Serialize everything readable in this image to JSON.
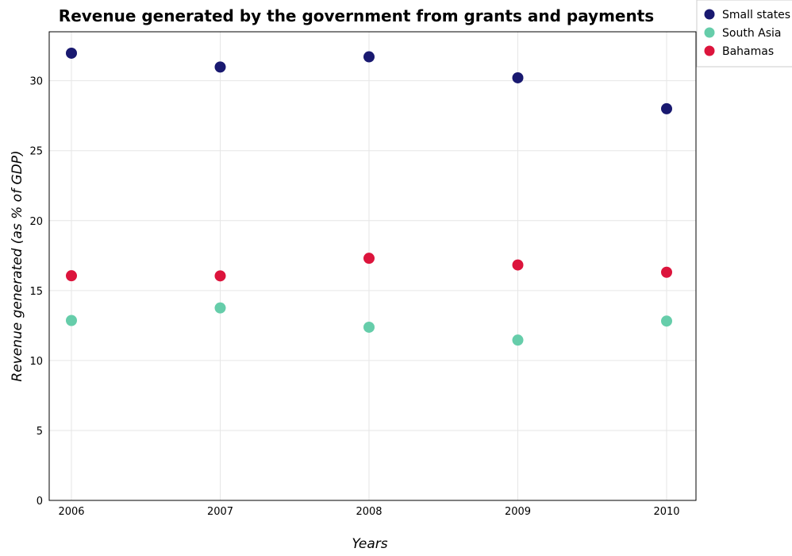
{
  "chart_data": {
    "type": "scatter",
    "title": "Revenue generated by the government from grants and payments",
    "xlabel": "Years",
    "ylabel": "Revenue generated (as % of GDP)",
    "categories": [
      "2006",
      "2007",
      "2008",
      "2009",
      "2010"
    ],
    "ylim": [
      0,
      33.5
    ],
    "yticks": [
      0,
      5,
      10,
      15,
      20,
      25,
      30
    ],
    "grid": true,
    "legend_position": "top-right",
    "series": [
      {
        "name": "Small states",
        "color": "#191970",
        "values": [
          31.97,
          30.98,
          31.71,
          30.21,
          28.0
        ]
      },
      {
        "name": "South Asia",
        "color": "#66cdaa",
        "values": [
          12.86,
          13.76,
          12.38,
          11.46,
          12.82
        ]
      },
      {
        "name": "Bahamas",
        "color": "#dc143c",
        "values": [
          16.06,
          16.05,
          17.31,
          16.83,
          16.31
        ]
      }
    ]
  }
}
